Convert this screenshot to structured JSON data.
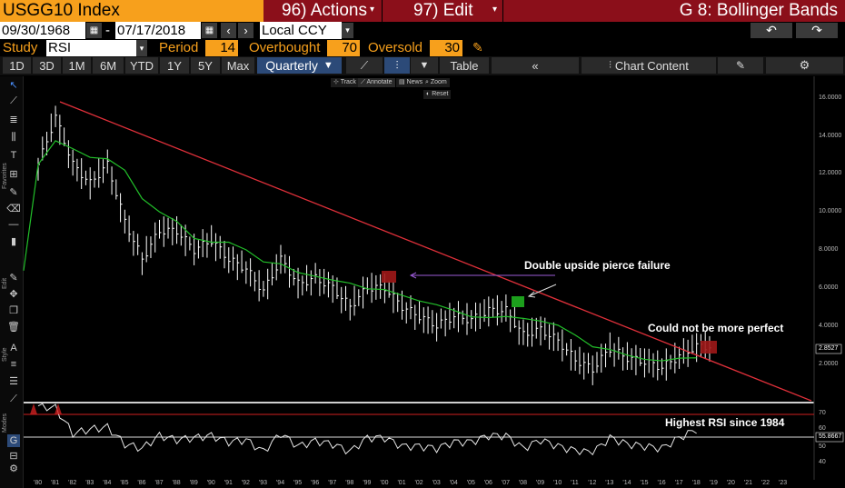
{
  "header": {
    "ticker": "USGG10 Index",
    "actions_menu": "96) Actions",
    "edit_menu": "97) Edit",
    "title": "G 8: Bollinger Bands"
  },
  "range": {
    "start_date": "09/30/1968",
    "separator": "-",
    "end_date": "07/17/2018",
    "currency": "Local CCY"
  },
  "study": {
    "study_label": "Study",
    "study_value": "RSI",
    "period_label": "Period",
    "period_value": "14",
    "overbought_label": "Overbought",
    "overbought_value": "70",
    "oversold_label": "Oversold",
    "oversold_value": "30"
  },
  "toolbar": {
    "periods": [
      "1D",
      "3D",
      "1M",
      "6M",
      "YTD",
      "1Y",
      "5Y",
      "Max"
    ],
    "frequency": "Quarterly",
    "table_label": "Table",
    "chart_content_label": "Chart Content"
  },
  "mini_toolbar": {
    "track": "Track",
    "annotate": "Annotate",
    "news": "News",
    "zoom": "Zoom",
    "reset": "Reset"
  },
  "side_labels": {
    "favorites": "Favorites",
    "edit": "Edit",
    "style": "Style",
    "modes": "Modes"
  },
  "annotations": {
    "pierce": "Double upside pierce failure",
    "perfect": "Could not be more perfect",
    "rsi": "Highest RSI since 1984"
  },
  "colors": {
    "bloomberg_orange": "#f7a01c",
    "header_red": "#8b0f1a",
    "trendline": "#e0303a",
    "moving_average": "#22c02a",
    "price_bars": "#ffffff",
    "highlight_green": "#1fb01f",
    "highlight_red": "#a01818"
  },
  "chart_data": [
    {
      "type": "line",
      "title": "",
      "series_name": "USGG10 Index (quarterly high/low bars)",
      "x": [
        "80",
        "81",
        "82",
        "83",
        "84",
        "85",
        "86",
        "87",
        "88",
        "89",
        "90",
        "91",
        "92",
        "93",
        "94",
        "95",
        "96",
        "97",
        "98",
        "99",
        "00",
        "01",
        "02",
        "03",
        "04",
        "05",
        "06",
        "07",
        "08",
        "09",
        "10",
        "11",
        "12",
        "13",
        "14",
        "15",
        "16",
        "17",
        "18"
      ],
      "values": [
        12.5,
        15.0,
        12.5,
        11.5,
        12.5,
        9.5,
        7.5,
        9.0,
        9.0,
        8.0,
        8.5,
        7.5,
        7.0,
        5.8,
        7.5,
        6.2,
        6.5,
        6.0,
        5.0,
        6.0,
        6.0,
        5.0,
        4.5,
        4.0,
        4.5,
        4.3,
        4.8,
        4.8,
        3.5,
        3.8,
        3.2,
        2.2,
        1.7,
        2.8,
        2.3,
        2.1,
        1.8,
        2.4,
        2.9
      ],
      "last_value": "2.8527",
      "ylim": [
        0,
        16
      ],
      "yticks": [
        "16.0000",
        "14.0000",
        "12.0000",
        "10.0000",
        "8.0000",
        "6.0000",
        "4.0000",
        "2.0000"
      ],
      "xticks": [
        "'80",
        "'81",
        "'82",
        "'83",
        "'84",
        "'85",
        "'86",
        "'87",
        "'88",
        "'89",
        "'90",
        "'91",
        "'92",
        "'93",
        "'94",
        "'95",
        "'96",
        "'97",
        "'98",
        "'99",
        "'00",
        "'01",
        "'02",
        "'03",
        "'04",
        "'05",
        "'06",
        "'07",
        "'08",
        "'09",
        "'10",
        "'11",
        "'12",
        "'13",
        "'14",
        "'15",
        "'16",
        "'17",
        "'18",
        "'19",
        "'20",
        "'21",
        "'22",
        "'23"
      ]
    },
    {
      "type": "line",
      "title": "",
      "series_name": "RSI (14)",
      "x": [
        "80",
        "81",
        "82",
        "83",
        "84",
        "85",
        "86",
        "87",
        "88",
        "89",
        "90",
        "91",
        "92",
        "93",
        "94",
        "95",
        "96",
        "97",
        "98",
        "99",
        "00",
        "01",
        "02",
        "03",
        "04",
        "05",
        "06",
        "07",
        "08",
        "09",
        "10",
        "11",
        "12",
        "13",
        "14",
        "15",
        "16",
        "17",
        "18"
      ],
      "values": [
        78,
        76,
        52,
        56,
        58,
        42,
        38,
        50,
        46,
        48,
        50,
        44,
        46,
        35,
        52,
        40,
        45,
        42,
        35,
        48,
        48,
        40,
        40,
        38,
        44,
        44,
        50,
        50,
        38,
        46,
        40,
        36,
        34,
        48,
        42,
        40,
        38,
        48,
        55.9
      ],
      "last_value": "55.8667",
      "ylim": [
        30,
        80
      ],
      "yticks": [
        "70",
        "60",
        "50",
        "40"
      ],
      "overbought": 70,
      "oversold": 30
    }
  ]
}
